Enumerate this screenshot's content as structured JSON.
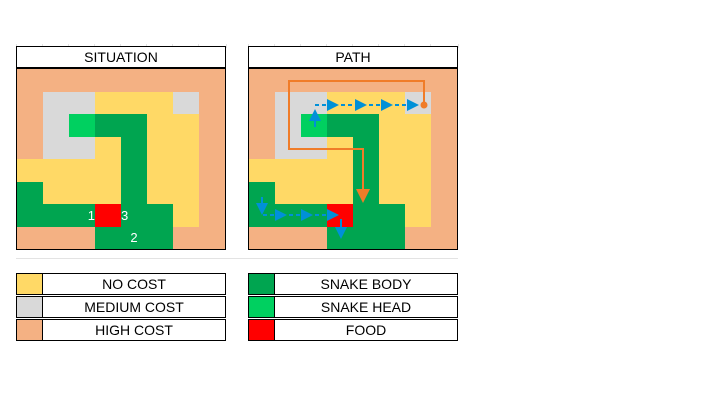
{
  "colors": {
    "Y": "#ffd966",
    "G": "#d9d9d9",
    "P": "#f4b183",
    "B": "#00a550",
    "H": "#00d060",
    "R": "#ff0000",
    "arrow_blue": "#0090d8",
    "arrow_orange": "#f07c28"
  },
  "panels": [
    {
      "title": "SITUATION",
      "grid": [
        "PPPPPPPP",
        "PGGYYYGP",
        "PGHBBYYP",
        "PGGYBYYP",
        "YYYYBYYP",
        "BYYYBYYP",
        "BBBRBBYP",
        "PPPBBBPP"
      ],
      "cell_numbers": [
        {
          "row": 6,
          "col": 2,
          "text": "1"
        },
        {
          "row": 7,
          "col": 4,
          "text": "2"
        },
        {
          "row": 6,
          "col": 4,
          "text": "3"
        }
      ]
    },
    {
      "title": "PATH",
      "grid": [
        "PPPPPPPP",
        "PGGYYYGP",
        "PGHBBYYP",
        "PGGYBYYP",
        "YYYYBYYP",
        "BYYYBYYP",
        "BBBRBBYP",
        "PPPBBBPP"
      ]
    }
  ],
  "legend": [
    {
      "color_key": "Y",
      "label": "NO COST",
      "icon": "yellow-swatch"
    },
    {
      "color_key": "G",
      "label": "MEDIUM COST",
      "icon": "gray-swatch"
    },
    {
      "color_key": "P",
      "label": "HIGH COST",
      "icon": "peach-swatch"
    },
    {
      "color_key": "B",
      "label": "SNAKE BODY",
      "icon": "dark-green-swatch"
    },
    {
      "color_key": "H",
      "label": "SNAKE HEAD",
      "icon": "light-green-swatch"
    },
    {
      "color_key": "R",
      "label": "FOOD",
      "icon": "red-swatch"
    }
  ]
}
